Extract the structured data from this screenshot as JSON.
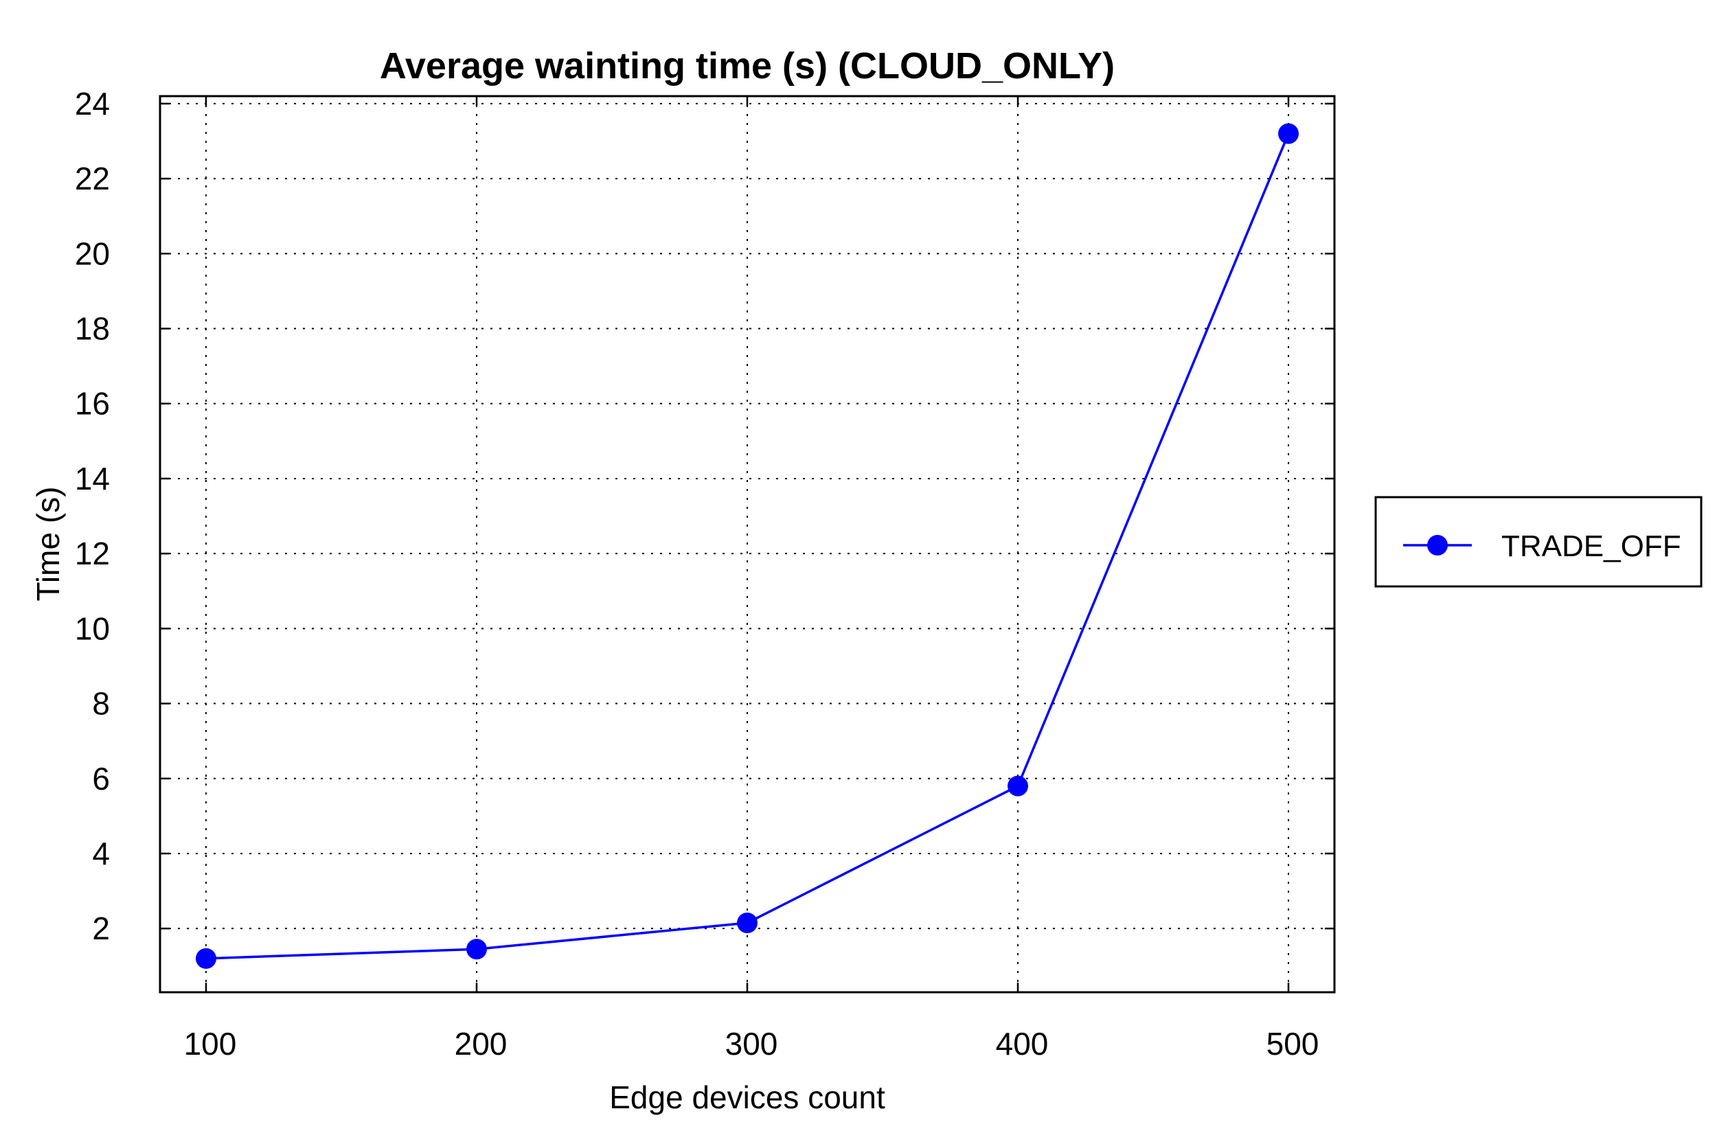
{
  "chart_data": {
    "type": "line",
    "title": "Average wainting time (s) (CLOUD_ONLY)",
    "xlabel": "Edge devices count",
    "ylabel": "Time (s)",
    "x": [
      100,
      200,
      300,
      400,
      500
    ],
    "x_ticks": [
      "100",
      "200",
      "300",
      "400",
      "500"
    ],
    "y_ticks": [
      "2",
      "4",
      "6",
      "8",
      "10",
      "12",
      "14",
      "16",
      "18",
      "20",
      "22",
      "24"
    ],
    "xlim": [
      83,
      517
    ],
    "ylim": [
      0.3,
      24.2
    ],
    "grid": true,
    "legend_position": "outside-right",
    "series": [
      {
        "name": "TRADE_OFF",
        "color": "#0000ff",
        "marker": "circle",
        "values": [
          1.2,
          1.45,
          2.15,
          5.8,
          23.2
        ]
      }
    ]
  }
}
